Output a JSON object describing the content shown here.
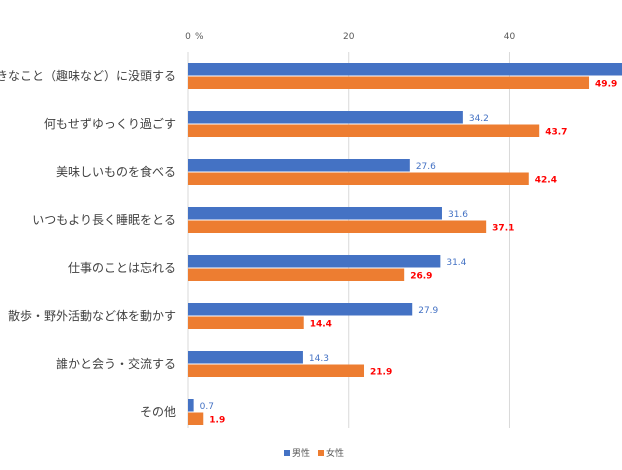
{
  "chart_data": {
    "type": "bar",
    "orientation": "horizontal",
    "title": "",
    "xlabel": "",
    "ylabel": "",
    "unit_label": "%",
    "xlim": [
      0,
      54
    ],
    "xticks": [
      0,
      20,
      40
    ],
    "grid": true,
    "legend_position": "bottom",
    "categories": [
      "好きなこと（趣味など）に没頭する",
      "何もせずゆっくり過ごす",
      "美味しいものを食べる",
      "いつもより長く睡眠をとる",
      "仕事のことは忘れる",
      "散歩・野外活動など体を動かす",
      "誰かと会う・交流する",
      "その他"
    ],
    "series": [
      {
        "name": "男性",
        "color": "#4472C4",
        "label_color": "#4472C4",
        "values": [
          55.0,
          34.2,
          27.6,
          31.6,
          31.4,
          27.9,
          14.3,
          0.7
        ],
        "labels": [
          "",
          "34.2",
          "27.6",
          "31.6",
          "31.4",
          "27.9",
          "14.3",
          "0.7"
        ]
      },
      {
        "name": "女性",
        "color": "#ED7D31",
        "label_color": "#FF0000",
        "values": [
          49.9,
          43.7,
          42.4,
          37.1,
          26.9,
          14.4,
          21.9,
          1.9
        ],
        "labels": [
          "49.9",
          "43.7",
          "42.4",
          "37.1",
          "26.9",
          "14.4",
          "21.9",
          "1.9"
        ]
      }
    ]
  }
}
